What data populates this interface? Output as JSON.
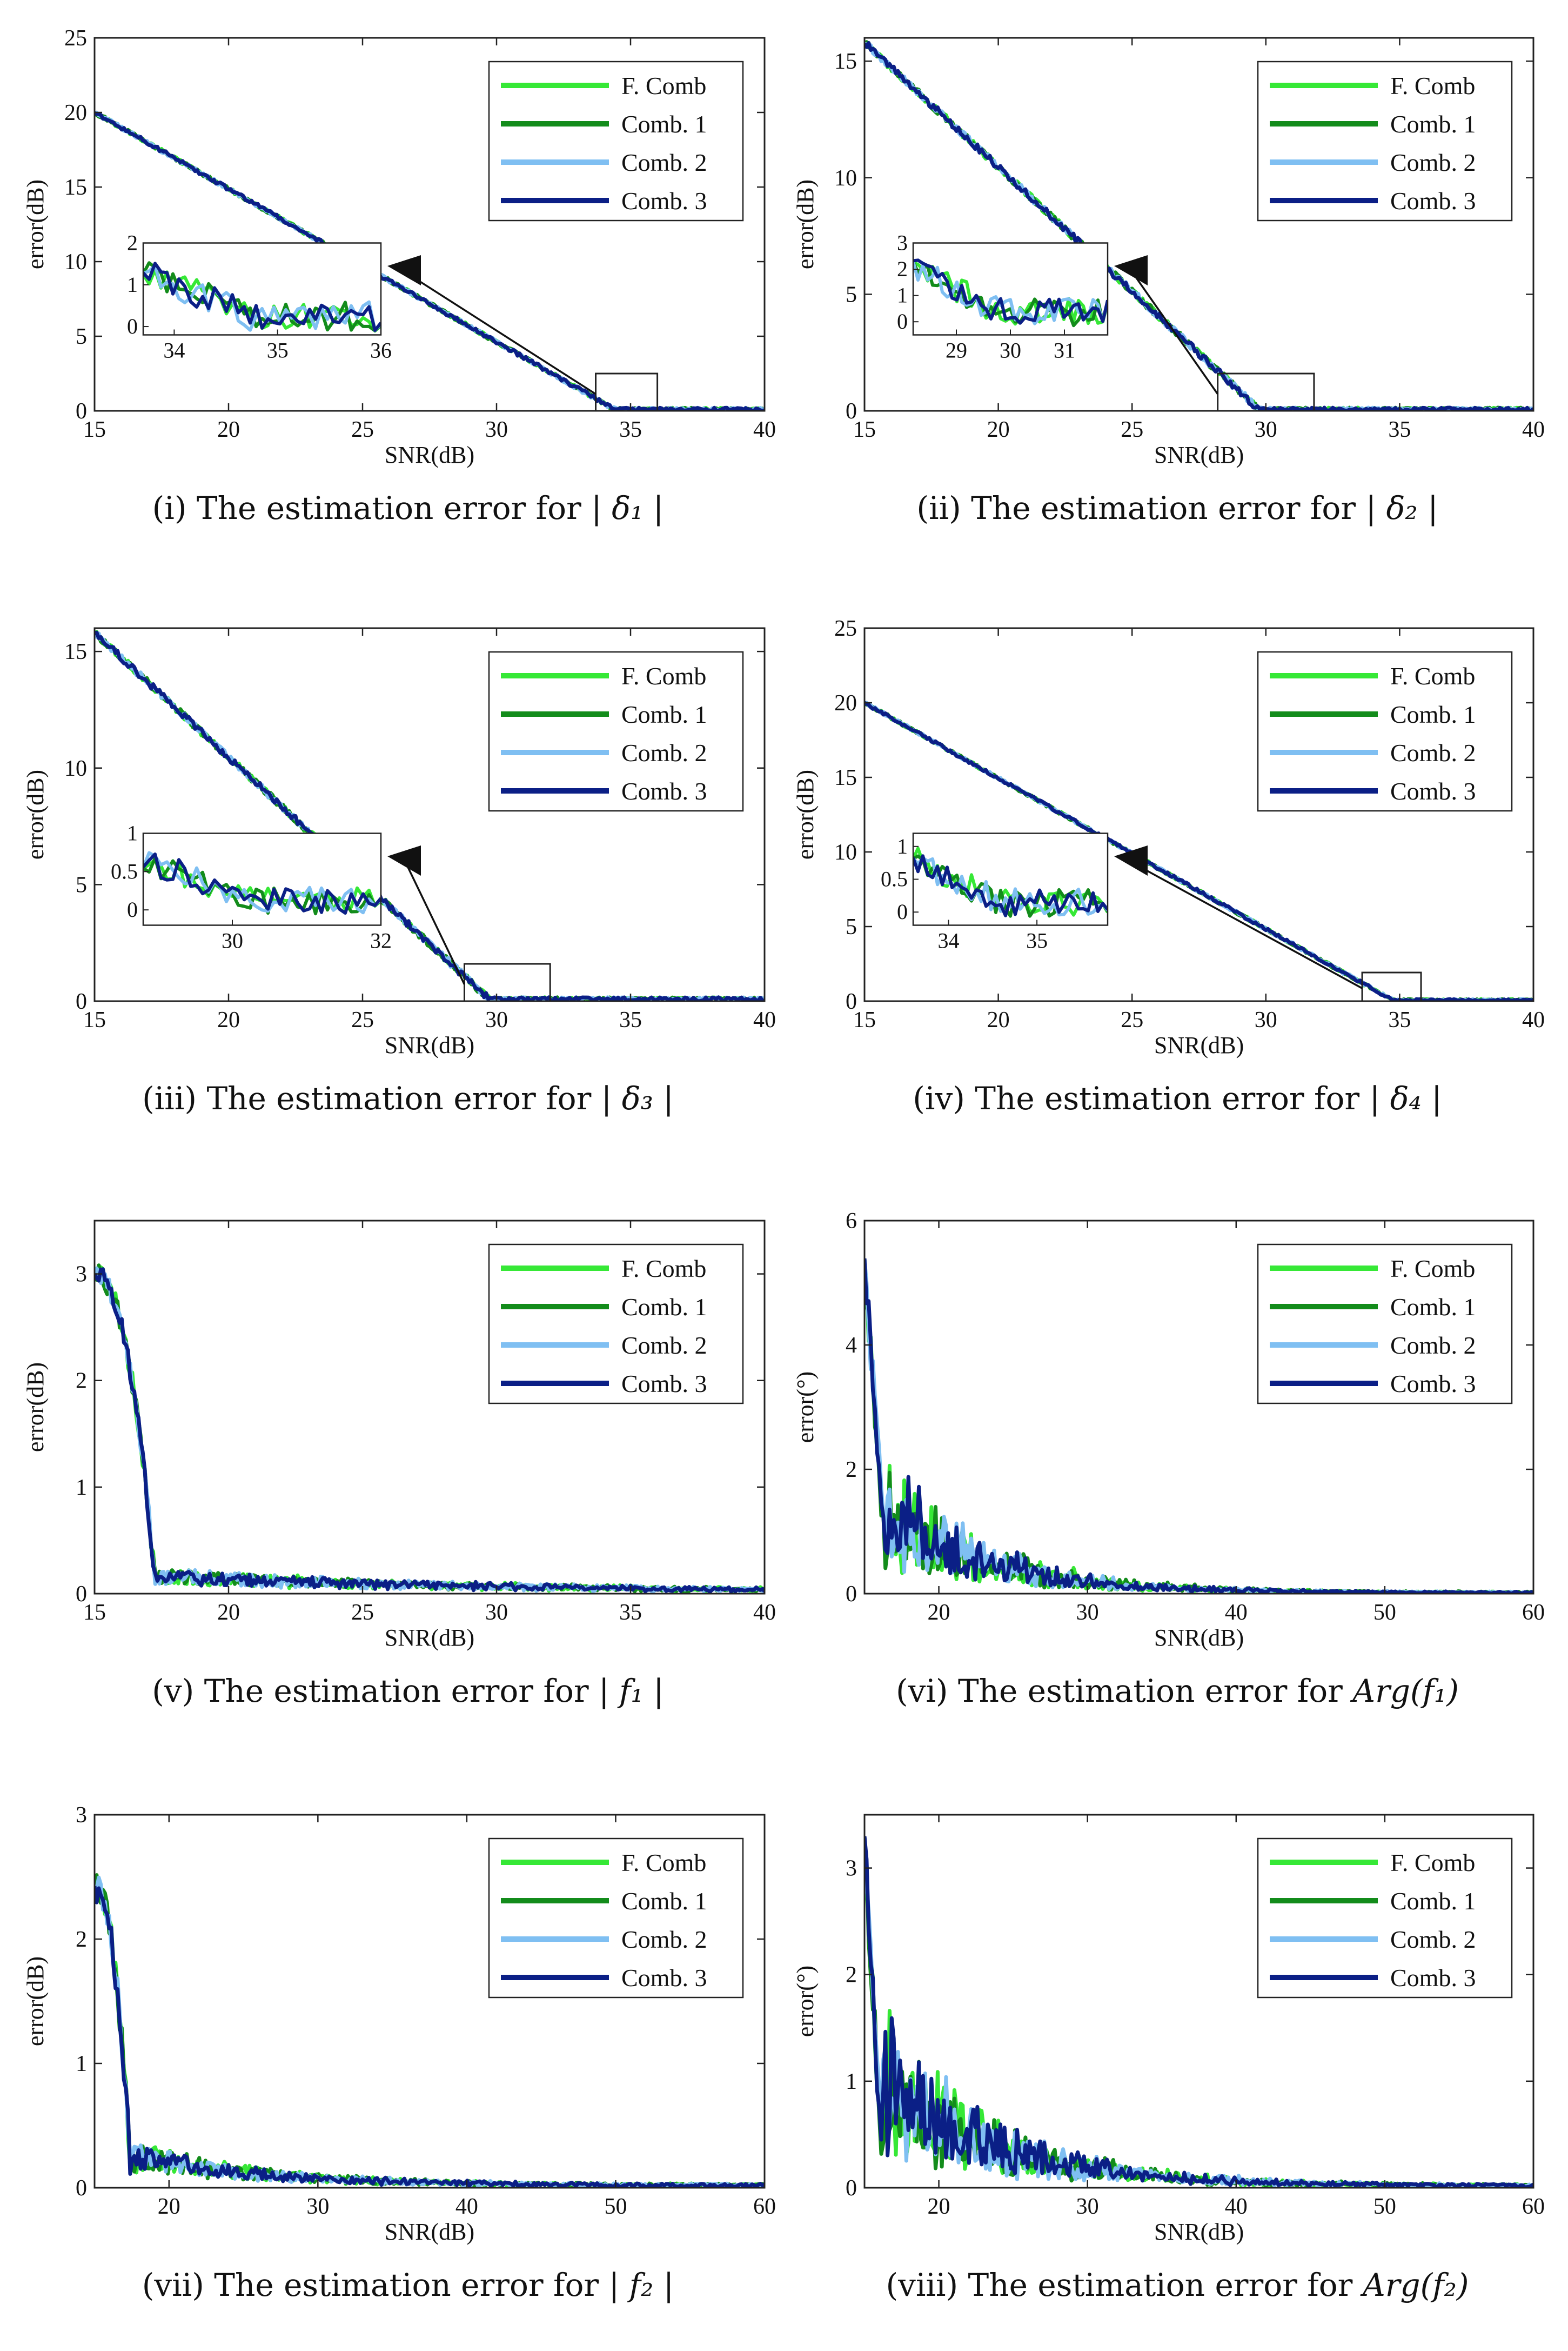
{
  "colors": {
    "F. Comb": "#36e836",
    "Comb. 1": "#138c1b",
    "Comb. 2": "#7fbff2",
    "Comb. 3": "#0b1f86"
  },
  "chart_data": [
    {
      "id": "i",
      "type": "line",
      "caption_prefix": "(i) The estimation error for ",
      "caption_math": "| δ₁ |",
      "xlabel": "SNR(dB)",
      "ylabel": "error(dB)",
      "xlim": [
        15,
        40
      ],
      "ylim": [
        0,
        25
      ],
      "xticks": [
        15,
        20,
        25,
        30,
        35,
        40
      ],
      "yticks": [
        0,
        5,
        10,
        15,
        20,
        25
      ],
      "legend": [
        "F. Comb",
        "Comb. 1",
        "Comb. 2",
        "Comb. 3"
      ],
      "legend_position": "top-right",
      "model": {
        "kind": "linear",
        "x0": 15,
        "y0": 20,
        "x1": 34.5,
        "tail": 0.15,
        "noise": 0.25
      },
      "inset": {
        "xlim": [
          33.7,
          36
        ],
        "ylim": [
          -0.2,
          2
        ],
        "xticks": [
          34,
          35,
          36
        ],
        "yticks": [
          0,
          1,
          2
        ]
      }
    },
    {
      "id": "ii",
      "type": "line",
      "caption_prefix": "(ii) The estimation error for ",
      "caption_math": "| δ₂ |",
      "xlabel": "SNR(dB)",
      "ylabel": "error(dB)",
      "xlim": [
        15,
        40
      ],
      "ylim": [
        0,
        16
      ],
      "xticks": [
        15,
        20,
        25,
        30,
        35,
        40
      ],
      "yticks": [
        0,
        5,
        10,
        15
      ],
      "legend": [
        "F. Comb",
        "Comb. 1",
        "Comb. 2",
        "Comb. 3"
      ],
      "legend_position": "top-right",
      "model": {
        "kind": "linear",
        "x0": 15,
        "y0": 15.8,
        "x1": 29.8,
        "tail": 0.1,
        "noise": 0.3
      },
      "inset": {
        "xlim": [
          28.2,
          31.8
        ],
        "ylim": [
          -0.5,
          3
        ],
        "xticks": [
          29,
          30,
          31
        ],
        "yticks": [
          0,
          1,
          2,
          3
        ]
      }
    },
    {
      "id": "iii",
      "type": "line",
      "caption_prefix": "(iii) The estimation error for ",
      "caption_math": "| δ₃ |",
      "xlabel": "SNR(dB)",
      "ylabel": "error(dB)",
      "xlim": [
        15,
        40
      ],
      "ylim": [
        0,
        16
      ],
      "xticks": [
        15,
        20,
        25,
        30,
        35,
        40
      ],
      "yticks": [
        0,
        5,
        10,
        15
      ],
      "legend": [
        "F. Comb",
        "Comb. 1",
        "Comb. 2",
        "Comb. 3"
      ],
      "legend_position": "top-right",
      "model": {
        "kind": "linear",
        "x0": 15,
        "y0": 15.8,
        "x1": 29.8,
        "tail": 0.12,
        "noise": 0.3
      },
      "inset": {
        "xlim": [
          28.8,
          32
        ],
        "ylim": [
          -0.2,
          1
        ],
        "xticks": [
          30,
          32
        ],
        "yticks": [
          0,
          0.5,
          1
        ]
      }
    },
    {
      "id": "iv",
      "type": "line",
      "caption_prefix": "(iv) The estimation error for ",
      "caption_math": "| δ₄ |",
      "xlabel": "SNR(dB)",
      "ylabel": "error(dB)",
      "xlim": [
        15,
        40
      ],
      "ylim": [
        0,
        25
      ],
      "xticks": [
        15,
        20,
        25,
        30,
        35,
        40
      ],
      "yticks": [
        0,
        5,
        10,
        15,
        20,
        25
      ],
      "legend": [
        "F. Comb",
        "Comb. 1",
        "Comb. 2",
        "Comb. 3"
      ],
      "legend_position": "top-right",
      "model": {
        "kind": "linear",
        "x0": 15,
        "y0": 20,
        "x1": 34.8,
        "tail": 0.1,
        "noise": 0.2
      },
      "inset": {
        "xlim": [
          33.6,
          35.8
        ],
        "ylim": [
          -0.2,
          1.2
        ],
        "xticks": [
          34,
          35
        ],
        "yticks": [
          0,
          0.5,
          1
        ]
      }
    },
    {
      "id": "v",
      "type": "line",
      "caption_prefix": "(v) The estimation error for ",
      "caption_math": "| f₁ |",
      "xlabel": "SNR(dB)",
      "ylabel": "error(dB)",
      "xlim": [
        15,
        40
      ],
      "ylim": [
        0,
        3.5
      ],
      "xticks": [
        15,
        20,
        25,
        30,
        35,
        40
      ],
      "yticks": [
        0,
        1,
        2,
        3
      ],
      "legend": [
        "F. Comb",
        "Comb. 1",
        "Comb. 2",
        "Comb. 3"
      ],
      "legend_position": "top-right",
      "model": {
        "kind": "drop",
        "start": 3.0,
        "drop_end": 17.3,
        "tail": 0.15,
        "decay": 12,
        "noise": 0.1
      }
    },
    {
      "id": "vi",
      "type": "line",
      "caption_prefix": "(vi) The estimation error for ",
      "caption_math": "Arg(f₁)",
      "xlabel": "SNR(dB)",
      "ylabel": "error(°)",
      "xlim": [
        15,
        60
      ],
      "ylim": [
        0,
        6
      ],
      "xticks": [
        20,
        30,
        40,
        50,
        60
      ],
      "yticks": [
        0,
        2,
        4,
        6
      ],
      "legend": [
        "F. Comb",
        "Comb. 1",
        "Comb. 2",
        "Comb. 3"
      ],
      "legend_position": "top-right",
      "model": {
        "kind": "spiky",
        "start": 5.0,
        "drop_end": 16.5,
        "tail": 1.2,
        "decay": 7,
        "noise": 0.7
      }
    },
    {
      "id": "vii",
      "type": "line",
      "caption_prefix": "(vii) The estimation error for ",
      "caption_math": "| f₂ |",
      "xlabel": "SNR(dB)",
      "ylabel": "error(dB)",
      "xlim": [
        15,
        60
      ],
      "ylim": [
        0,
        3
      ],
      "xticks": [
        20,
        30,
        40,
        50,
        60
      ],
      "yticks": [
        0,
        1,
        2,
        3
      ],
      "legend": [
        "F. Comb",
        "Comb. 1",
        "Comb. 2",
        "Comb. 3"
      ],
      "legend_position": "top-right",
      "model": {
        "kind": "drop",
        "start": 2.4,
        "drop_end": 17.5,
        "tail": 0.25,
        "decay": 9,
        "noise": 0.12
      }
    },
    {
      "id": "viii",
      "type": "line",
      "caption_prefix": "(viii) The estimation error for ",
      "caption_math": "Arg(f₂)",
      "xlabel": "SNR(dB)",
      "ylabel": "error(°)",
      "xlim": [
        15,
        60
      ],
      "ylim": [
        0,
        3.5
      ],
      "xticks": [
        20,
        30,
        40,
        50,
        60
      ],
      "yticks": [
        0,
        1,
        2,
        3
      ],
      "legend": [
        "F. Comb",
        "Comb. 1",
        "Comb. 2",
        "Comb. 3"
      ],
      "legend_position": "top-right",
      "model": {
        "kind": "spiky",
        "start": 3.0,
        "drop_end": 16.2,
        "tail": 0.9,
        "decay": 8,
        "noise": 0.45
      }
    }
  ]
}
